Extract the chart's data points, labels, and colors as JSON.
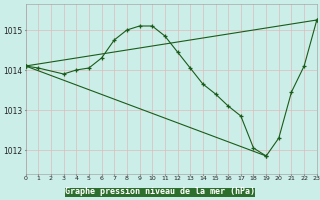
{
  "title": "Graphe pression niveau de la mer (hPa)",
  "background_color": "#cceee8",
  "plot_bg_color": "#cceee8",
  "grid_color": "#ddbbbb",
  "line_color": "#1a5c1a",
  "marker": "+",
  "x_hours": [
    0,
    1,
    2,
    3,
    4,
    5,
    6,
    7,
    8,
    9,
    10,
    11,
    12,
    13,
    14,
    15,
    16,
    17,
    18,
    19,
    20,
    21,
    22,
    23
  ],
  "series1_x": [
    0,
    1,
    3,
    4,
    5,
    6,
    7,
    8,
    9,
    10,
    11,
    12,
    13,
    14,
    15,
    16,
    17,
    18,
    19,
    20,
    21,
    22,
    23
  ],
  "series1_y": [
    1014.1,
    1014.05,
    1013.9,
    1014.0,
    1014.05,
    1014.3,
    1014.75,
    1015.0,
    1015.1,
    1015.1,
    1014.85,
    1014.45,
    1014.05,
    1013.65,
    1013.4,
    1013.1,
    1012.85,
    1012.05,
    1011.85,
    1012.3,
    1013.45,
    1014.1,
    1015.25
  ],
  "series2_x": [
    0,
    23
  ],
  "series2_y": [
    1014.1,
    1015.25
  ],
  "series3_x": [
    0,
    19
  ],
  "series3_y": [
    1014.1,
    1011.85
  ],
  "ylim": [
    1011.4,
    1015.65
  ],
  "yticks": [
    1012,
    1013,
    1014,
    1015
  ],
  "xlim": [
    0,
    23
  ],
  "title_bg_color": "#2d6e2d",
  "title_text_color": "#ffffff"
}
